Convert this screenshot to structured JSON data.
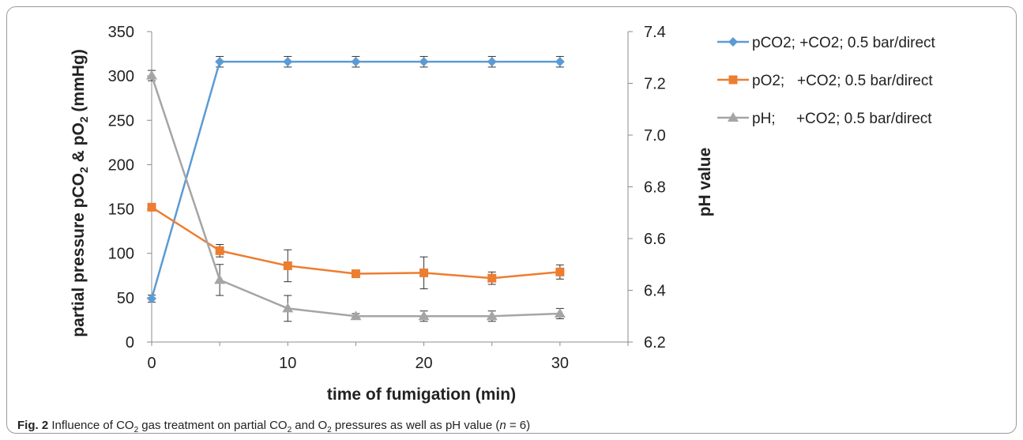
{
  "chart_data": {
    "type": "line",
    "x": [
      0,
      5,
      10,
      15,
      20,
      25,
      30
    ],
    "xlabel": "time of fumigation (min)",
    "xlim": [
      0,
      35
    ],
    "xticks": [
      0,
      10,
      20,
      30
    ],
    "ylabel_left": {
      "pre": "partial pressure pCO",
      "sub1": "2",
      "mid": " & pO",
      "sub2": "2",
      "post": " (mmHg)"
    },
    "ylim_left": [
      0,
      350
    ],
    "yticks_left": [
      0,
      50,
      100,
      150,
      200,
      250,
      300,
      350
    ],
    "ylabel_right": "pH value",
    "ylim_right": [
      6.2,
      7.4
    ],
    "yticks_right": [
      "6.2",
      "6.4",
      "6.6",
      "6.8",
      "7.0",
      "7.2",
      "7.4"
    ],
    "grid": false,
    "legend_position": "top-right",
    "series": [
      {
        "name": "pCO2; +CO2; 0.5 bar/direct",
        "axis": "left",
        "marker": "diamond",
        "color": "#5b9bd5",
        "values": [
          49,
          316,
          316,
          316,
          316,
          316,
          316
        ],
        "errors": [
          4,
          6,
          6,
          6,
          6,
          6,
          6
        ]
      },
      {
        "name": "pO2;   +CO2; 0.5 bar/direct",
        "axis": "left",
        "marker": "square",
        "color": "#ed7d31",
        "values": [
          152,
          103,
          86,
          77,
          78,
          72,
          79
        ],
        "errors": [
          3,
          7,
          18,
          3,
          18,
          7,
          8
        ]
      },
      {
        "name": "pH;     +CO2; 0.5 bar/direct",
        "axis": "right",
        "marker": "triangle",
        "color": "#a5a5a5",
        "values": [
          7.23,
          6.44,
          6.33,
          6.3,
          6.3,
          6.3,
          6.31
        ],
        "errors": [
          0.02,
          0.06,
          0.05,
          0.01,
          0.02,
          0.02,
          0.02
        ]
      }
    ]
  },
  "caption": {
    "fig": "Fig. 2",
    "t1": "  Influence of CO",
    "s1": "2",
    "t2": " gas treatment on partial CO",
    "s2": "2",
    "t3": " and O",
    "s3": "2",
    "t4": " pressures as well as pH value (",
    "n": "n",
    "t5": " = 6)"
  }
}
